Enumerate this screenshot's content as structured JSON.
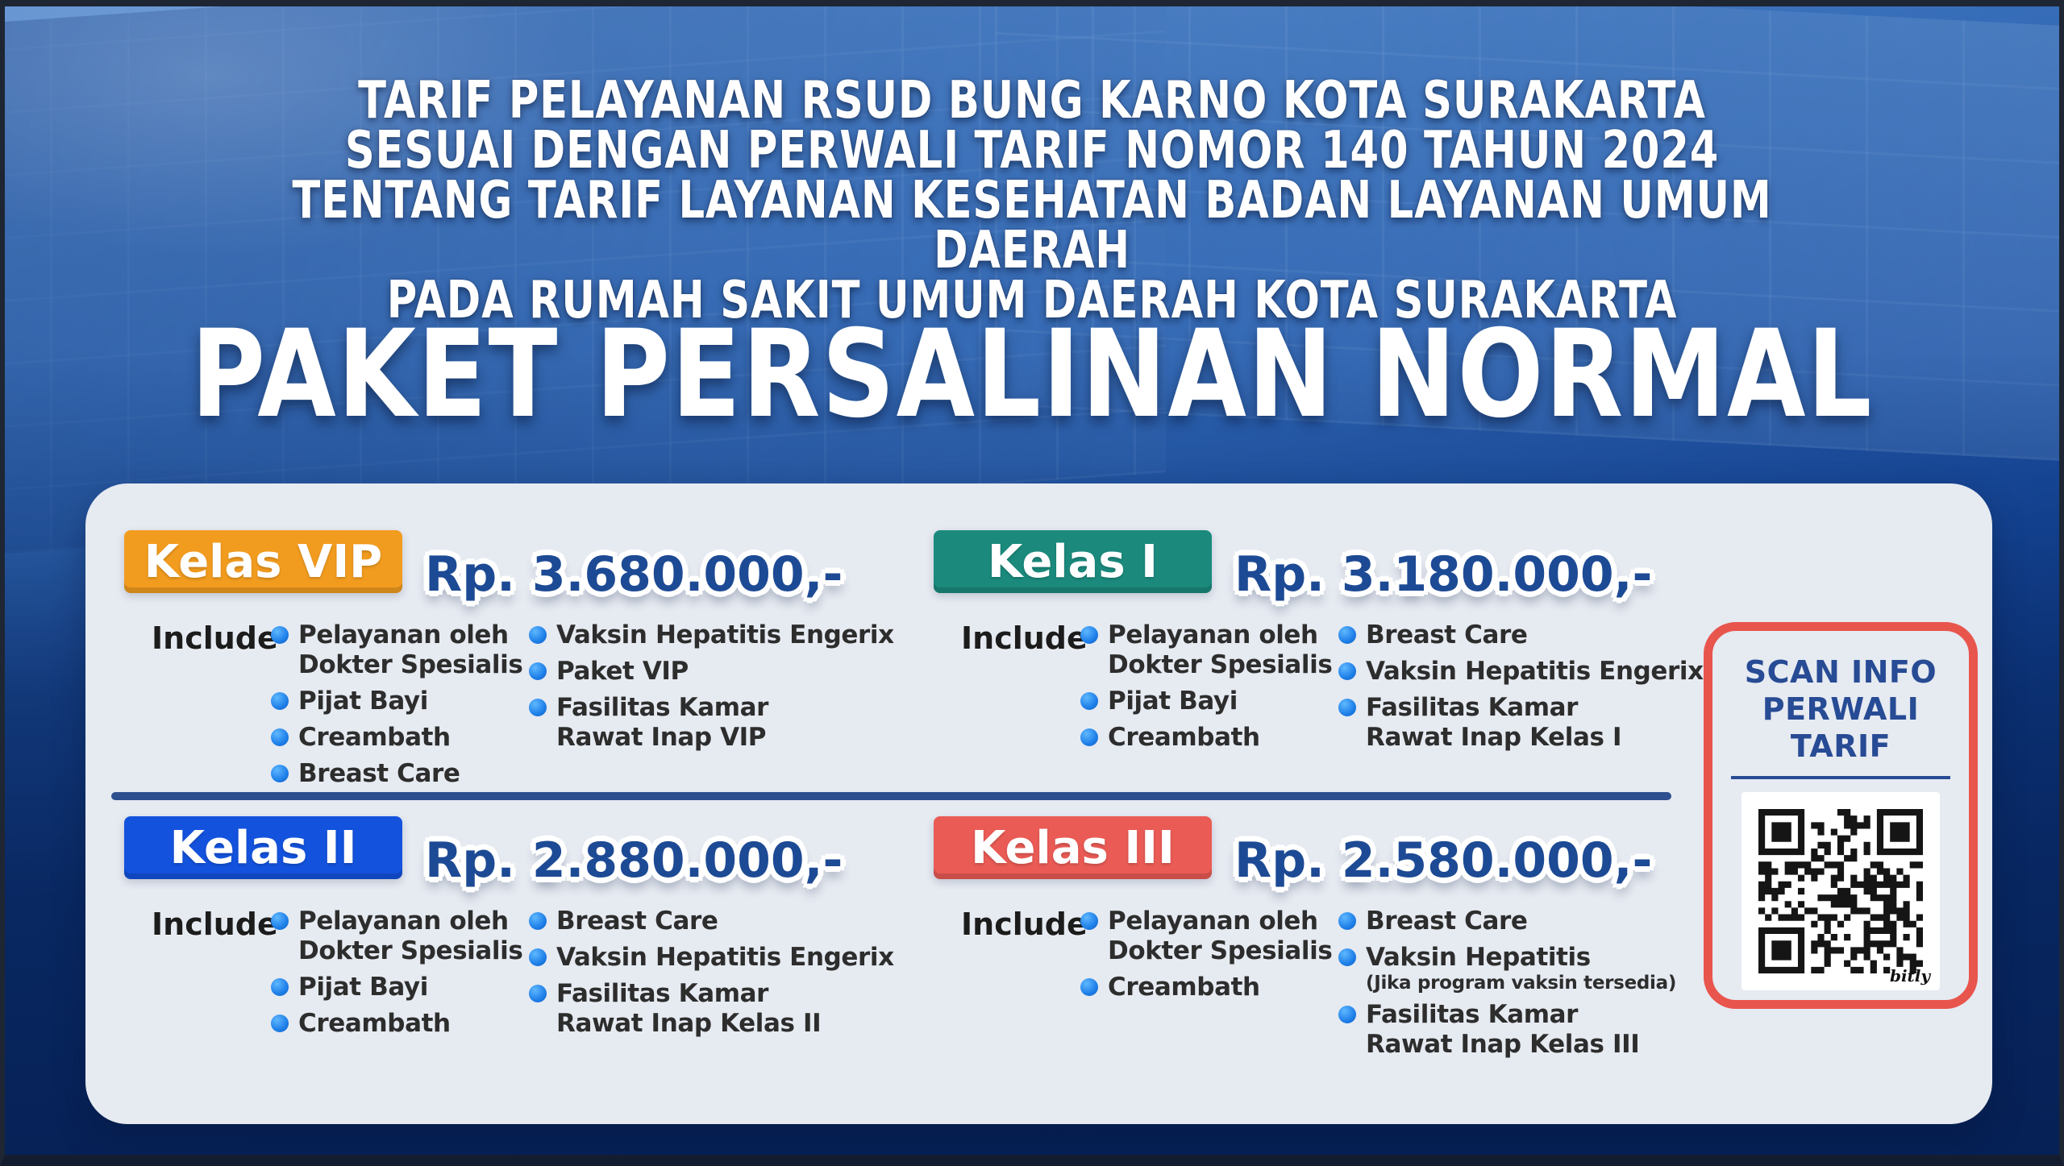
{
  "header": {
    "lines": [
      "TARIF PELAYANAN RSUD BUNG KARNO KOTA SURAKARTA",
      "SESUAI DENGAN PERWALI TARIF NOMOR 140 TAHUN 2024",
      "TENTANG TARIF LAYANAN KESEHATAN BADAN LAYANAN UMUM DAERAH",
      "PADA RUMAH SAKIT UMUM DAERAH KOTA SURAKARTA"
    ]
  },
  "title": "PAKET PERSALINAN NORMAL",
  "card": {
    "divider_color": "#2D4F8E",
    "background": "#E6EAF1",
    "packages": [
      {
        "name": "Kelas VIP",
        "badge_color": "#F29C1F",
        "price": "Rp. 3.680.000,-",
        "include_label": "Include",
        "col1": [
          {
            "lines": [
              "Pelayanan oleh",
              "Dokter Spesialis"
            ]
          },
          {
            "lines": [
              "Pijat Bayi"
            ]
          },
          {
            "lines": [
              "Creambath"
            ]
          },
          {
            "lines": [
              "Breast Care"
            ]
          }
        ],
        "col2": [
          {
            "lines": [
              "Vaksin Hepatitis Engerix"
            ]
          },
          {
            "lines": [
              "Paket VIP"
            ]
          },
          {
            "lines": [
              "Fasilitas Kamar",
              "Rawat Inap VIP"
            ]
          }
        ]
      },
      {
        "name": "Kelas I",
        "badge_color": "#1B8A7D",
        "price": "Rp. 3.180.000,-",
        "include_label": "Include",
        "col1": [
          {
            "lines": [
              "Pelayanan oleh",
              "Dokter Spesialis"
            ]
          },
          {
            "lines": [
              "Pijat Bayi"
            ]
          },
          {
            "lines": [
              "Creambath"
            ]
          }
        ],
        "col2": [
          {
            "lines": [
              "Breast Care"
            ]
          },
          {
            "lines": [
              "Vaksin Hepatitis Engerix"
            ]
          },
          {
            "lines": [
              "Fasilitas Kamar",
              "Rawat Inap Kelas I"
            ]
          }
        ]
      },
      {
        "name": "Kelas II",
        "badge_color": "#1352DD",
        "price": "Rp. 2.880.000,-",
        "include_label": "Include",
        "col1": [
          {
            "lines": [
              "Pelayanan oleh",
              "Dokter Spesialis"
            ]
          },
          {
            "lines": [
              "Pijat Bayi"
            ]
          },
          {
            "lines": [
              "Creambath"
            ]
          }
        ],
        "col2": [
          {
            "lines": [
              "Breast Care"
            ]
          },
          {
            "lines": [
              "Vaksin Hepatitis Engerix"
            ]
          },
          {
            "lines": [
              "Fasilitas Kamar",
              "Rawat Inap Kelas II"
            ]
          }
        ]
      },
      {
        "name": "Kelas III",
        "badge_color": "#EA5B55",
        "price": "Rp. 2.580.000,-",
        "include_label": "Include",
        "col1": [
          {
            "lines": [
              "Pelayanan oleh",
              "Dokter Spesialis"
            ]
          },
          {
            "lines": [
              "Creambath"
            ]
          }
        ],
        "col2": [
          {
            "lines": [
              "Breast Care"
            ]
          },
          {
            "lines": [
              "Vaksin Hepatitis"
            ],
            "note": "(Jika program vaksin tersedia)"
          },
          {
            "lines": [
              "Fasilitas Kamar",
              "Rawat Inap Kelas III"
            ]
          }
        ]
      }
    ]
  },
  "qr_panel": {
    "line1": "SCAN INFO",
    "line2": "PERWALI TARIF",
    "brand": "bitly",
    "border_color": "#E8554D",
    "icon": "qr-code-icon"
  },
  "colors": {
    "price_text": "#1D4A94",
    "item_text": "#2D2D2D",
    "bullet": "#1E7FE8",
    "header_text": "#FFFFFF"
  }
}
